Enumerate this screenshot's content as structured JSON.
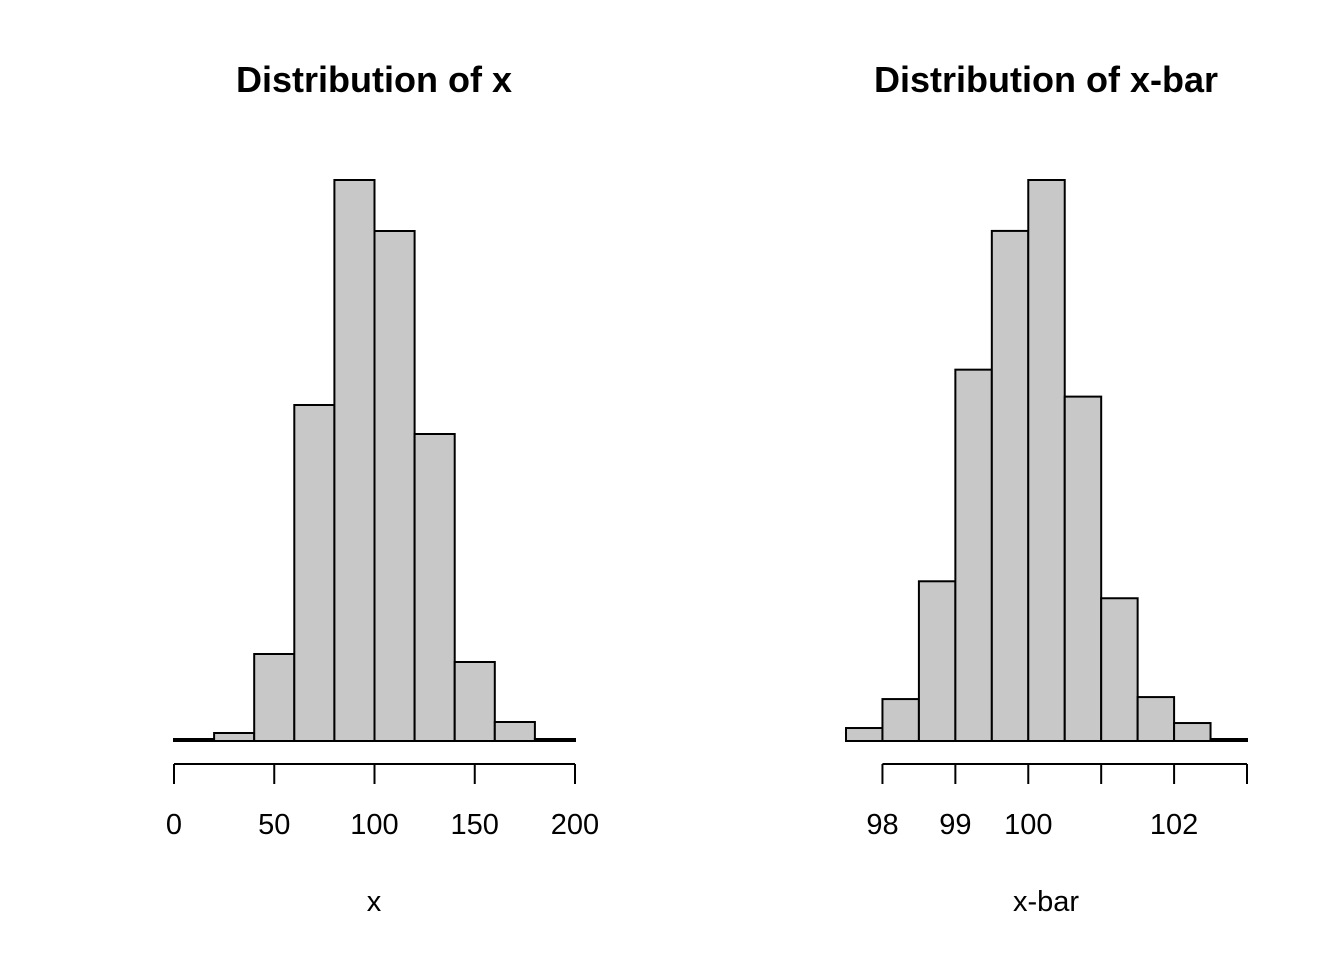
{
  "chart_data": [
    {
      "type": "bar",
      "title": "Distribution of x",
      "xlabel": "x",
      "ylabel": "",
      "bin_edges": [
        0,
        20,
        40,
        60,
        80,
        100,
        120,
        140,
        160,
        180,
        200
      ],
      "values": [
        2,
        8,
        87,
        336,
        561,
        510,
        307,
        79,
        19,
        2
      ],
      "xlim": [
        0,
        200
      ],
      "ylim": [
        0,
        561
      ],
      "x_ticks": [
        0,
        50,
        100,
        150,
        200
      ],
      "x_tick_labels": [
        "0",
        "50",
        "100",
        "150",
        "200"
      ],
      "show_y_axis": false,
      "bar_color": "#c8c8c8",
      "grid": false
    },
    {
      "type": "bar",
      "title": "Distribution of x-bar",
      "xlabel": "x-bar",
      "ylabel": "",
      "bin_edges": [
        97.5,
        98,
        98.5,
        99,
        99.5,
        100,
        100.5,
        101,
        101.5,
        102,
        102.5,
        103
      ],
      "values": [
        13,
        42,
        160,
        372,
        511,
        562,
        345,
        143,
        44,
        18,
        2
      ],
      "xlim": [
        97.5,
        103
      ],
      "ylim": [
        0,
        562
      ],
      "x_ticks": [
        98,
        99,
        100,
        101,
        102,
        103
      ],
      "x_tick_labels": [
        "98",
        "99",
        "100",
        "",
        "102",
        ""
      ],
      "show_y_axis": false,
      "bar_color": "#c8c8c8",
      "grid": false
    }
  ]
}
